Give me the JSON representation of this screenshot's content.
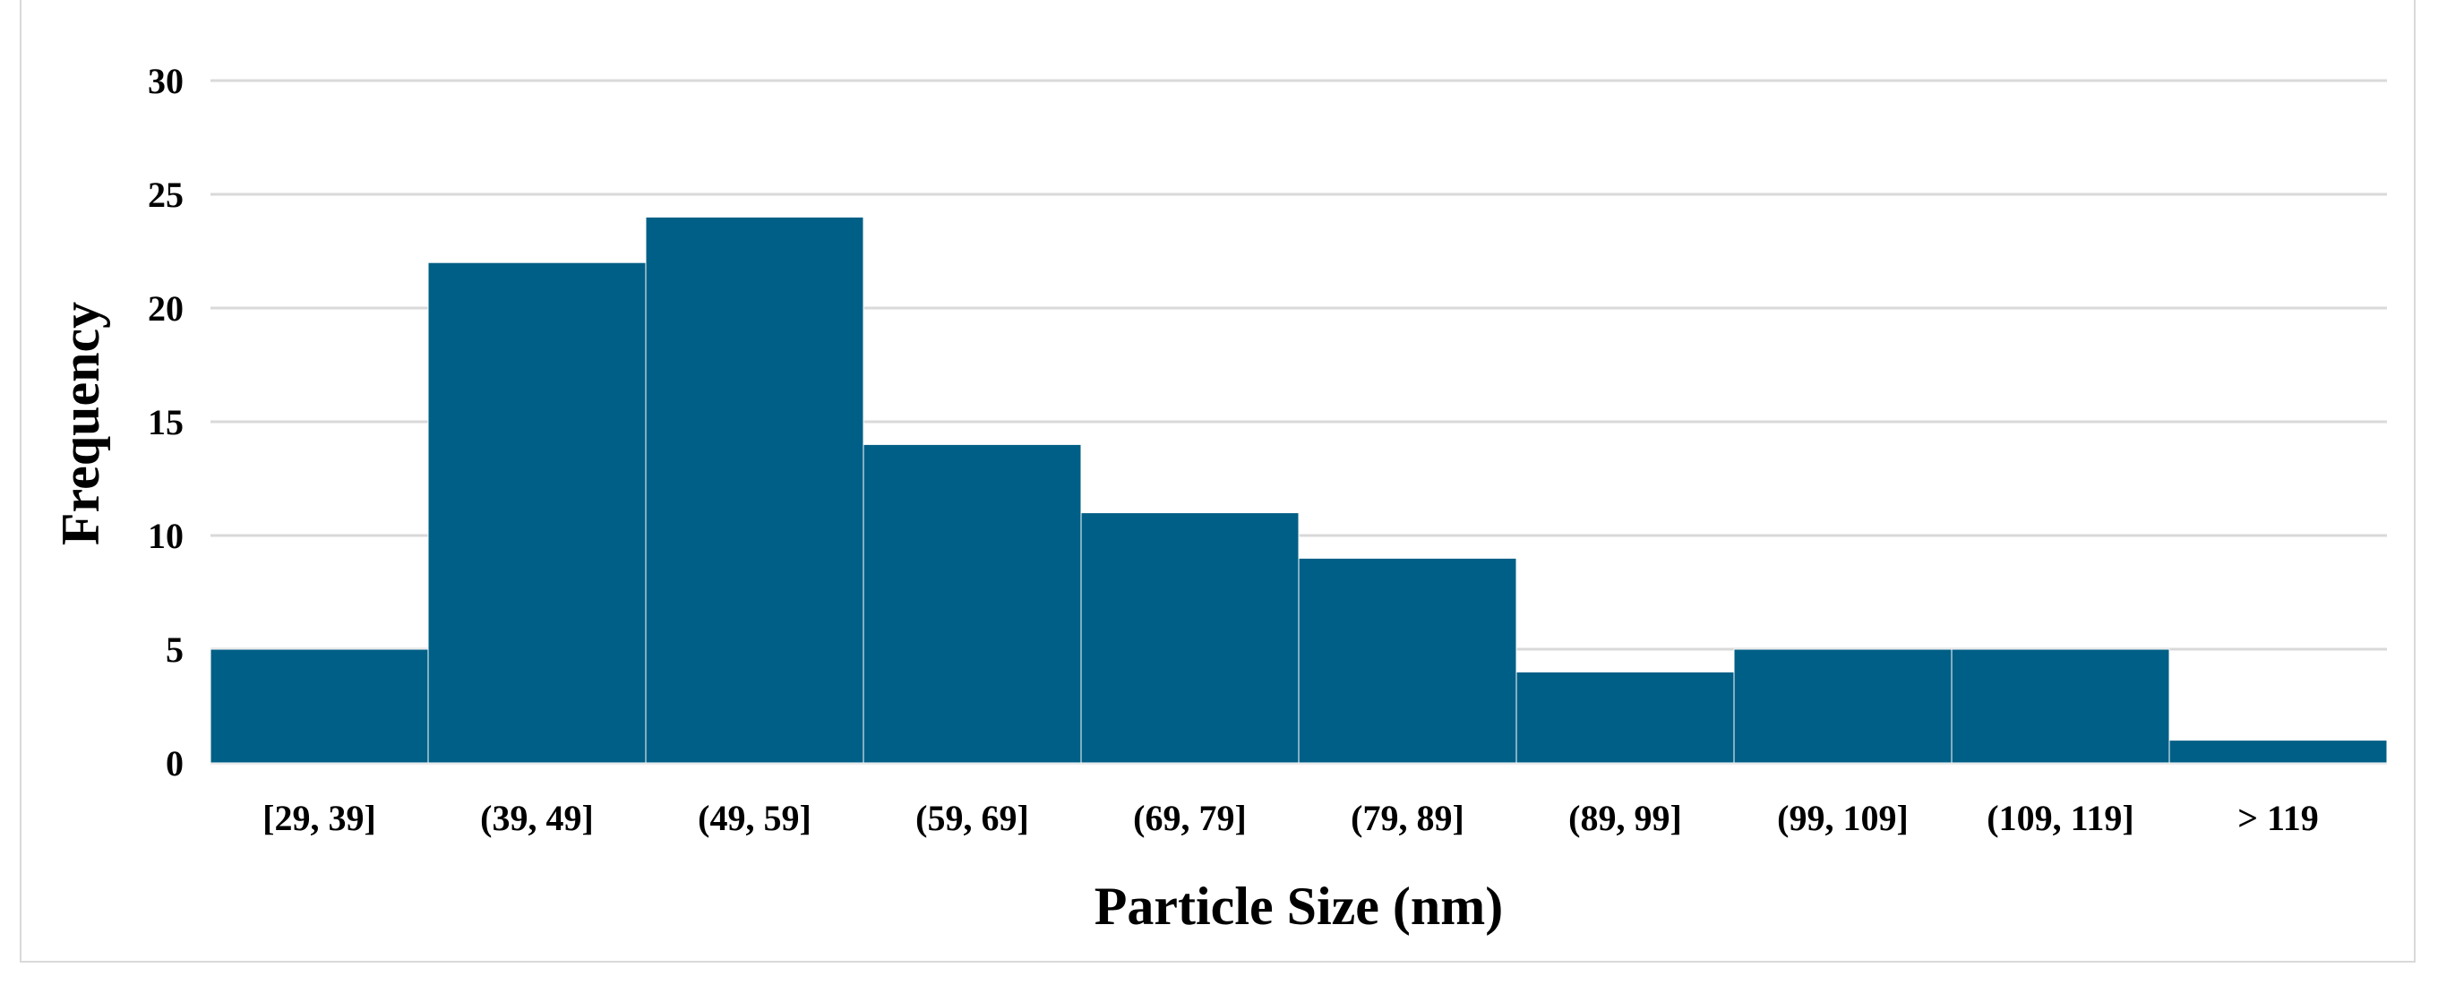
{
  "chart_data": {
    "type": "bar",
    "title": "",
    "categories": [
      "[29, 39]",
      "(39, 49]",
      "(49, 59]",
      "(59, 69]",
      "(69, 79]",
      "(79, 89]",
      "(89, 99]",
      "(99, 109]",
      "(109, 119]",
      "> 119"
    ],
    "values": [
      5,
      22,
      24,
      14,
      11,
      9,
      4,
      5,
      5,
      1
    ],
    "xlabel": "Particle Size (nm)",
    "ylabel": "Frequency",
    "ylim": [
      0,
      30
    ],
    "yticks": [
      "0",
      "5",
      "10",
      "15",
      "20",
      "25",
      "30"
    ],
    "grid": true,
    "bar_color": "#005f86",
    "grid_color": "#d9d9d9"
  }
}
